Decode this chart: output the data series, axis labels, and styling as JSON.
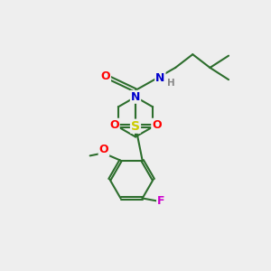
{
  "bg_color": "#eeeeee",
  "bond_color": "#2d6e2d",
  "atom_colors": {
    "O": "#ff0000",
    "N": "#0000cc",
    "S": "#cccc00",
    "F": "#cc00cc",
    "H": "#888888",
    "C": "#2d6e2d"
  },
  "figsize": [
    3.0,
    3.0
  ],
  "dpi": 100
}
